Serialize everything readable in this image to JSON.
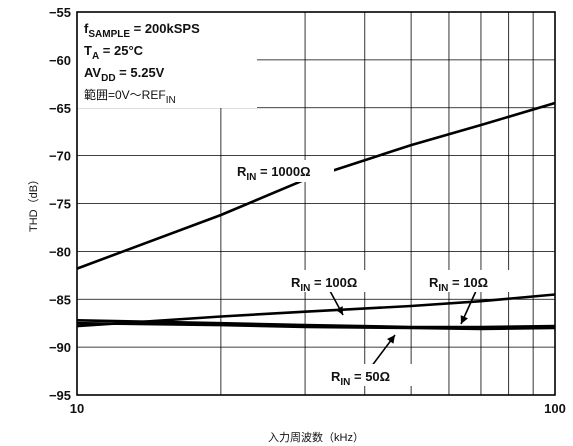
{
  "chart_data": {
    "type": "line",
    "xlabel": "入力周波数（kHz）",
    "ylabel": "THD（dB）",
    "xscale": "log",
    "xlim": [
      10,
      100
    ],
    "ylim": [
      -95,
      -55
    ],
    "x_ticks": [
      "10",
      "100"
    ],
    "y_ticks": [
      "−55",
      "−60",
      "−65",
      "−70",
      "−75",
      "−80",
      "−85",
      "−90",
      "−95"
    ],
    "grid": true,
    "conditions": [
      {
        "main": "f",
        "sub": "SAMPLE",
        "rest": " = 200kSPS"
      },
      {
        "main": "T",
        "sub": "A",
        "rest": " = 25°C"
      },
      {
        "main": "AV",
        "sub": "DD",
        "rest": " = 5.25V"
      },
      {
        "main": "範囲=0V〜REF",
        "sub": "IN",
        "rest": ""
      }
    ],
    "series": [
      {
        "name": "R_IN = 1000Ω",
        "x": [
          10,
          20,
          30,
          50,
          70,
          100
        ],
        "y": [
          -81.8,
          -76.2,
          -72.5,
          -68.9,
          -66.8,
          -64.5
        ]
      },
      {
        "name": "R_IN = 100Ω",
        "x": [
          10,
          20,
          30,
          50,
          70,
          100
        ],
        "y": [
          -87.8,
          -86.8,
          -86.3,
          -85.7,
          -85.2,
          -84.5
        ]
      },
      {
        "name": "R_IN = 10Ω",
        "x": [
          10,
          20,
          30,
          50,
          70,
          100
        ],
        "y": [
          -87.2,
          -87.5,
          -87.7,
          -87.9,
          -87.9,
          -87.8
        ]
      },
      {
        "name": "R_IN = 50Ω",
        "x": [
          10,
          20,
          30,
          50,
          70,
          100
        ],
        "y": [
          -87.5,
          -87.7,
          -87.9,
          -88.0,
          -88.1,
          -88.0
        ]
      }
    ],
    "annotations": [
      {
        "series": 0,
        "main": "R",
        "sub": "IN",
        "rest": " = 1000Ω"
      },
      {
        "series": 1,
        "main": "R",
        "sub": "IN",
        "rest": " = 100Ω"
      },
      {
        "series": 2,
        "main": "R",
        "sub": "IN",
        "rest": " = 10Ω"
      },
      {
        "series": 3,
        "main": "R",
        "sub": "IN",
        "rest": " = 50Ω"
      }
    ]
  }
}
